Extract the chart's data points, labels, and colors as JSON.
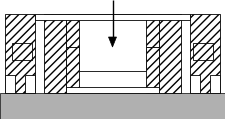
{
  "bg_color": "#ffffff",
  "outline_color": "#000000",
  "ground_color": "#b0b0b0",
  "hatch": "////",
  "lw": 0.6,
  "figsize": [
    2.25,
    1.19
  ],
  "dpi": 100
}
